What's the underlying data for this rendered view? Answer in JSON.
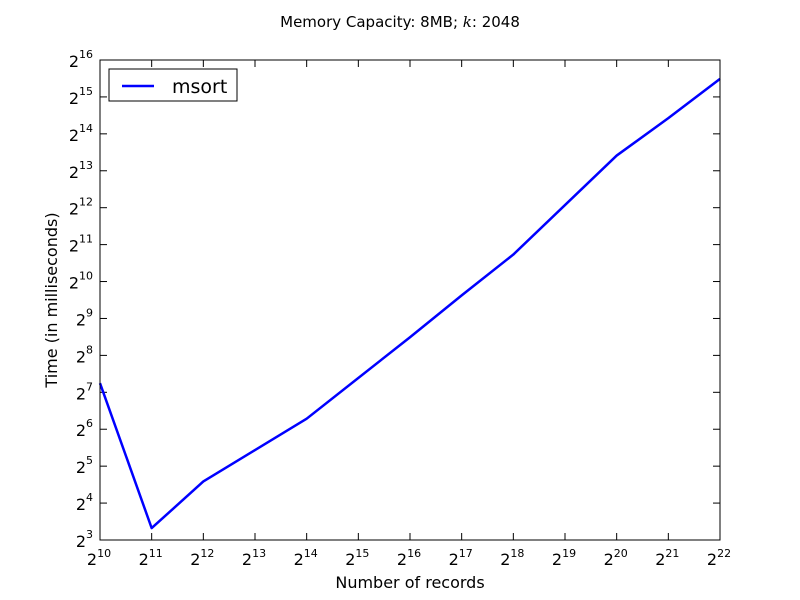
{
  "chart_data": {
    "type": "line",
    "title": "Memory Capacity: 8MB; k: 2048",
    "title_parts": {
      "prefix": "Memory Capacity: 8MB; ",
      "italic": "k",
      "suffix": ": 2048"
    },
    "xlabel": "Number of records",
    "ylabel": "Time (in milliseconds)",
    "x_scale": "log2",
    "y_scale": "log2",
    "xlim": [
      1024,
      4194304
    ],
    "ylim": [
      8,
      65536
    ],
    "tick_base": "2",
    "x_tick_exponents": [
      "10",
      "11",
      "12",
      "13",
      "14",
      "15",
      "16",
      "17",
      "18",
      "19",
      "20",
      "21",
      "22"
    ],
    "y_tick_exponents": [
      "3",
      "4",
      "5",
      "6",
      "7",
      "8",
      "9",
      "10",
      "11",
      "12",
      "13",
      "14",
      "15",
      "16"
    ],
    "grid": false,
    "legend_position": "top-left",
    "series": [
      {
        "name": "msort",
        "color": "#0000ff",
        "x": [
          1024,
          2048,
          4096,
          16384,
          65536,
          131072,
          262144,
          1048576,
          2097152,
          4194304
        ],
        "y": [
          152,
          10,
          24,
          78,
          360,
          790,
          1700,
          10900,
          22000,
          46000
        ]
      }
    ]
  }
}
